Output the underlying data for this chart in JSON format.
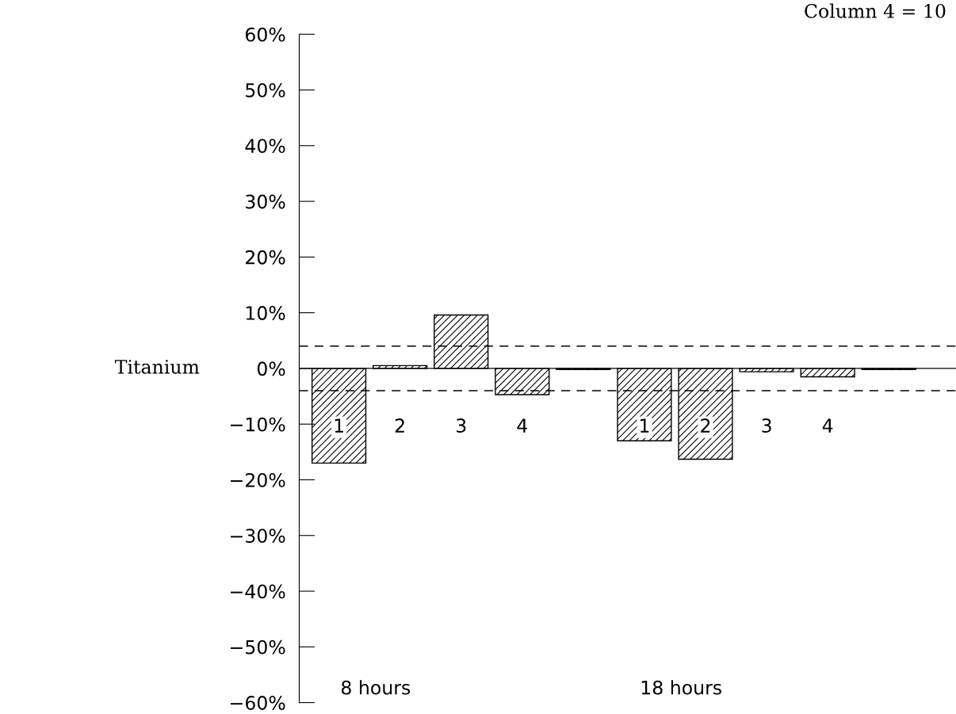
{
  "chart_data": {
    "type": "bar",
    "title": "Column 4 = 10",
    "ylabel": "Titanium",
    "categories": [
      "1",
      "2",
      "3",
      "4",
      null,
      "1",
      "2",
      "3",
      "4",
      null
    ],
    "values": [
      -17,
      0.5,
      9.6,
      -4.7,
      -0.2,
      -13,
      -16.3,
      -0.6,
      -1.5,
      -0.2
    ],
    "color": "#000000",
    "annotations": [
      "8 hours",
      "18 hours"
    ],
    "ylim": [
      -60,
      60
    ],
    "yticks": [
      {
        "value": -60,
        "label": "−60%"
      },
      {
        "value": -50,
        "label": "−50%"
      },
      {
        "value": -40,
        "label": "−40%"
      },
      {
        "value": -30,
        "label": "−30%"
      },
      {
        "value": -20,
        "label": "−20%"
      },
      {
        "value": -10,
        "label": "−10%"
      },
      {
        "value": 0,
        "label": "0%"
      },
      {
        "value": 10,
        "label": "10%"
      },
      {
        "value": 20,
        "label": "20%"
      },
      {
        "value": 30,
        "label": "30%"
      },
      {
        "value": 40,
        "label": "40%"
      },
      {
        "value": 50,
        "label": "50%"
      },
      {
        "value": 60,
        "label": "60%"
      }
    ],
    "ref_lines": [
      {
        "axis": "y",
        "value": 0,
        "line_style": "solid",
        "color": "#000000"
      },
      {
        "axis": "y",
        "value": 4,
        "line_style": "dashed",
        "color": "#000000"
      },
      {
        "axis": "y",
        "value": -4,
        "line_style": "dashed",
        "color": "#000000"
      }
    ],
    "grid": false,
    "legend": false
  }
}
